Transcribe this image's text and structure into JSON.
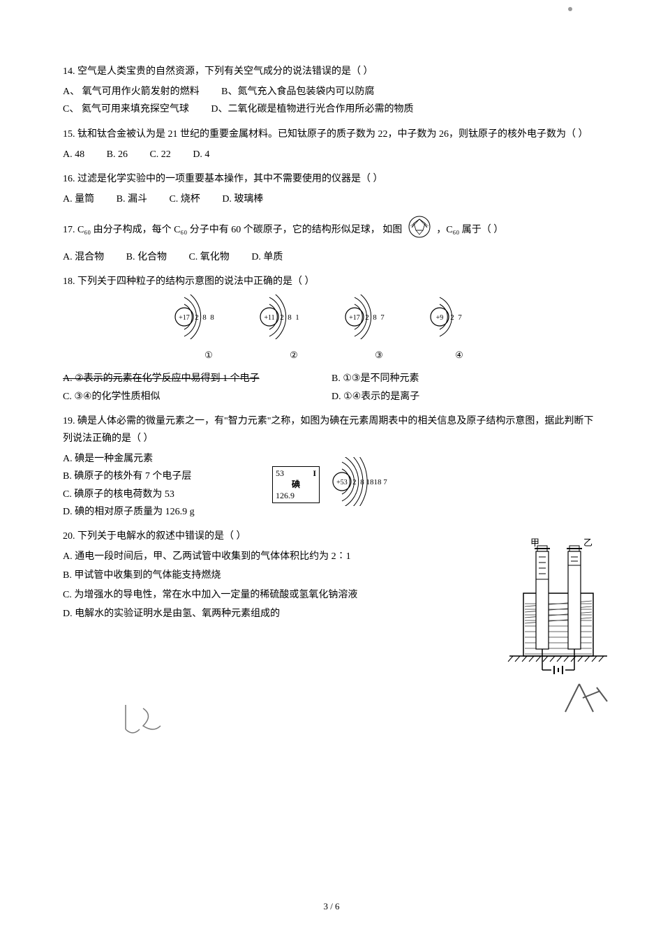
{
  "q14": {
    "stem": "14.  空气是人类宝贵的自然资源，下列有关空气成分的说法错误的是（    ）",
    "a": "A、  氧气可用作火箭发射的燃料",
    "b": "B、氮气充入食品包装袋内可以防腐",
    "c": "C、  氦气可用来填充探空气球",
    "d": "D、二氧化碳是植物进行光合作用所必需的物质"
  },
  "q15": {
    "stem": "15.  钛和钛合金被认为是 21 世纪的重要金属材料。已知钛原子的质子数为 22，中子数为 26，则钛原子的核外电子数为（     ）",
    "a": "A.  48",
    "b": "B.  26",
    "c": "C.  22",
    "d": "D.  4"
  },
  "q16": {
    "stem": "16.  过滤是化学实验中的一项重要基本操作，其中不需要使用的仪器是（     ）",
    "a": "A.  量筒",
    "b": "B.  漏斗",
    "c": "C.  烧杯",
    "d": "D.  玻璃棒"
  },
  "q17": {
    "stem_pre": "17.  C₆₀ 由分子构成，每个 C₆₀ 分子中有 60 个碳原子，它的结构形似足球，  如图",
    "stem_post": "，C₆₀ 属于（      ）",
    "a": "A.  混合物",
    "b": "B.  化合物",
    "c": "C.  氧化物",
    "d": "D.  单质"
  },
  "q18": {
    "stem": "18. 下列关于四种粒子的结构示意图的说法中正确的是（    ）",
    "atoms": [
      {
        "nucleus": "+17",
        "shells": [
          "2",
          "8",
          "8"
        ],
        "label": "①"
      },
      {
        "nucleus": "+11",
        "shells": [
          "2",
          "8",
          "1"
        ],
        "label": "②"
      },
      {
        "nucleus": "+17",
        "shells": [
          "2",
          "8",
          "7"
        ],
        "label": "③"
      },
      {
        "nucleus": "+9",
        "shells": [
          "2",
          "7"
        ],
        "label": "④"
      }
    ],
    "a": "A.  ②表示的元素在化学反应中易得到 1 个电子",
    "b": "B.  ①③是不同种元素",
    "c": "C.  ③④的化学性质相似",
    "d": "D.  ①④表示的是离子"
  },
  "q19": {
    "stem": "19.  碘是人体必需的微量元素之一，有\"智力元素\"之称，如图为碘在元素周期表中的相关信息及原子结构示意图，据此判断下列说法正确的是（     ）",
    "a": "A.  碘是一种金属元素",
    "b": "B.  碘原子的核外有 7 个电子层",
    "c": "C.  碘原子的核电荷数为 53",
    "d": "D.  碘的相对原子质量为 126.9 g",
    "card": {
      "num": "53",
      "sym": "I",
      "name": "碘",
      "mass": "126.9"
    },
    "atom": {
      "nucleus": "+53",
      "shells": [
        "2",
        "8",
        "18",
        "18",
        "7"
      ]
    }
  },
  "q20": {
    "stem": "20.  下列关于电解水的叙述中错误的是（     ）",
    "a": "A.  通电一段时间后，甲、乙两试管中收集到的气体体积比约为 2∶1",
    "b": "B.  甲试管中收集到的气体能支持燃烧",
    "c": "C.  为增强水的导电性，常在水中加入一定量的稀硫酸或氢氧化钠溶液",
    "d": "D.  电解水的实验证明水是由氢、氧两种元素组成的",
    "labels": {
      "left": "甲",
      "right": "乙"
    }
  },
  "footer": "3 / 6",
  "colors": {
    "stroke": "#000000",
    "hatch": "#333333",
    "hand": "#555555"
  }
}
